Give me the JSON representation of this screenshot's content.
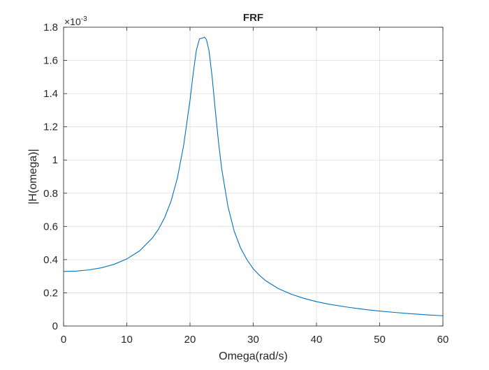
{
  "chart_data": {
    "type": "line",
    "title": "FRF",
    "xlabel": "Omega(rad/s)",
    "ylabel": "|H(omega)|",
    "exponent_label": "×10",
    "exponent_power": "-3",
    "xlim": [
      0,
      60
    ],
    "ylim": [
      0,
      1.8
    ],
    "xticks": [
      0,
      10,
      20,
      30,
      40,
      50,
      60
    ],
    "xtick_labels": [
      "0",
      "10",
      "20",
      "30",
      "40",
      "50",
      "60"
    ],
    "yticks": [
      0,
      0.2,
      0.4,
      0.6,
      0.8,
      1.0,
      1.2,
      1.4,
      1.6,
      1.8
    ],
    "ytick_labels": [
      "0",
      "0.2",
      "0.4",
      "0.6",
      "0.8",
      "1",
      "1.2",
      "1.4",
      "1.6",
      "1.8"
    ],
    "grid": true,
    "legend": "none",
    "line_color": "#0072BD",
    "series": [
      {
        "x": [
          0,
          2,
          4,
          6,
          8,
          10,
          12,
          14,
          15,
          16,
          17,
          18,
          19,
          20,
          20.5,
          21,
          21.5,
          22,
          22.3,
          22.6,
          23,
          23.5,
          24,
          24.5,
          25,
          26,
          27,
          28,
          29,
          30,
          31,
          32,
          34,
          36,
          38,
          40,
          42,
          45,
          48,
          50,
          52,
          55,
          58,
          60
        ],
        "y": [
          0.329,
          0.331,
          0.338,
          0.351,
          0.372,
          0.404,
          0.452,
          0.528,
          0.582,
          0.654,
          0.752,
          0.891,
          1.09,
          1.36,
          1.52,
          1.66,
          1.73,
          1.735,
          1.74,
          1.725,
          1.66,
          1.5,
          1.3,
          1.11,
          0.95,
          0.72,
          0.57,
          0.47,
          0.4,
          0.345,
          0.305,
          0.272,
          0.225,
          0.192,
          0.167,
          0.147,
          0.131,
          0.113,
          0.098,
          0.09,
          0.083,
          0.074,
          0.066,
          0.062
        ]
      }
    ]
  }
}
